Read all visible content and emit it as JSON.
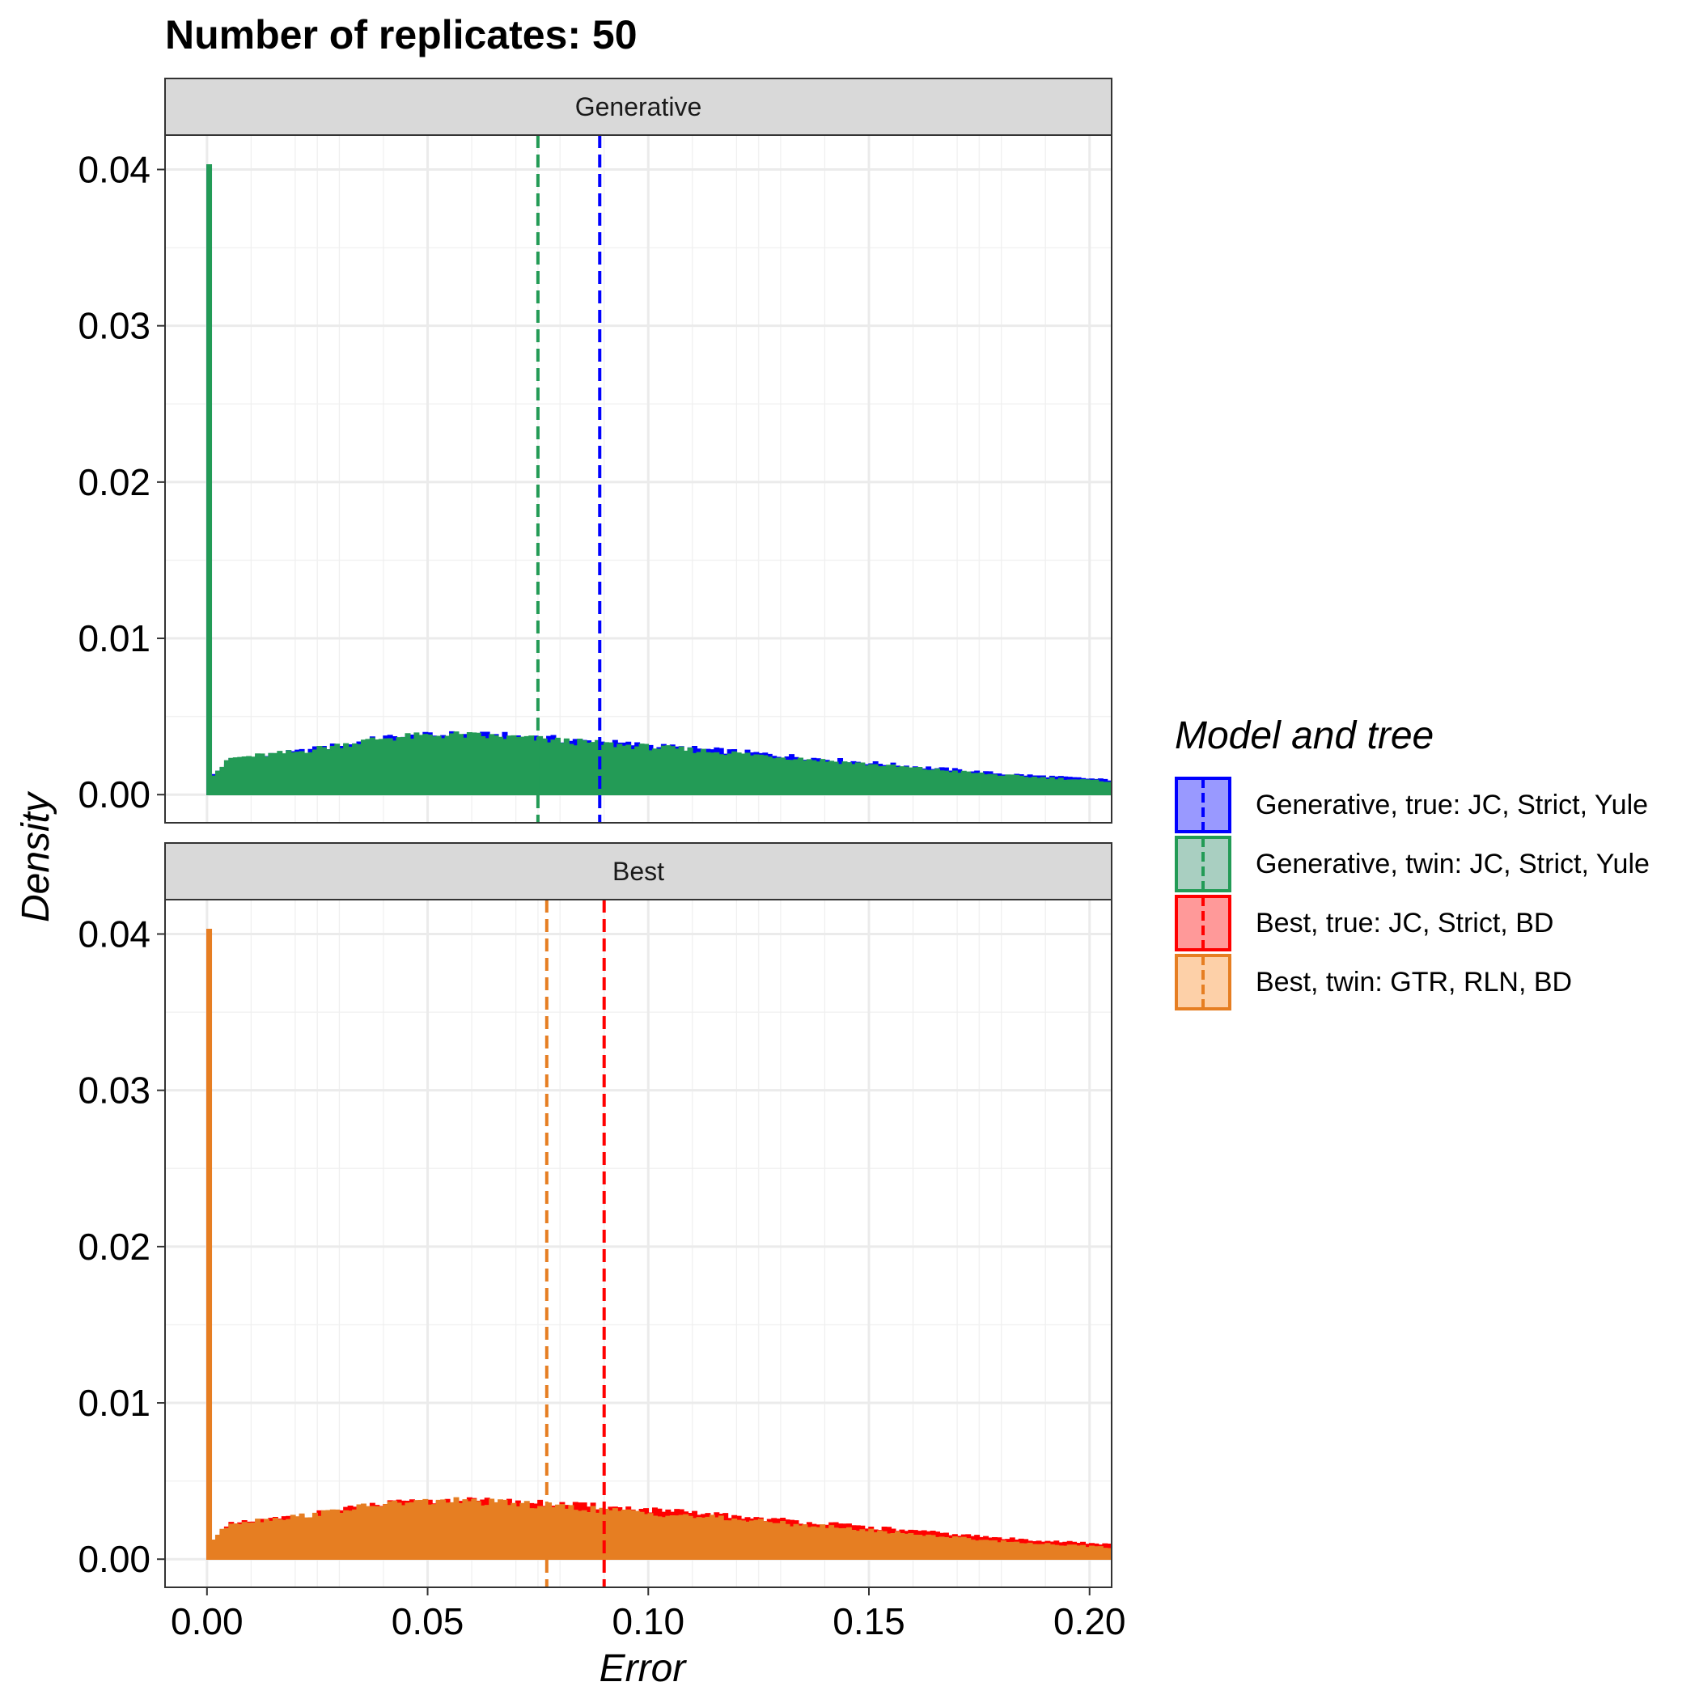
{
  "chart_data": {
    "type": "histogram",
    "title": "Number of replicates:  50",
    "xlabel": "Error",
    "ylabel": "Density",
    "xlim": [
      -0.0095,
      0.205
    ],
    "ylim": [
      -0.0018,
      0.0422
    ],
    "x_ticks": [
      {
        "value": 0.0,
        "label": "0.00"
      },
      {
        "value": 0.05,
        "label": "0.05"
      },
      {
        "value": 0.1,
        "label": "0.10"
      },
      {
        "value": 0.15,
        "label": "0.15"
      },
      {
        "value": 0.2,
        "label": "0.20"
      }
    ],
    "y_ticks": [
      {
        "value": 0.0,
        "label": "0.00"
      },
      {
        "value": 0.01,
        "label": "0.01"
      },
      {
        "value": 0.02,
        "label": "0.02"
      },
      {
        "value": 0.03,
        "label": "0.03"
      },
      {
        "value": 0.04,
        "label": "0.04"
      }
    ],
    "grid": true,
    "bin_width": 0.001,
    "legend": {
      "title": "Model and tree",
      "position": "right",
      "entries": [
        {
          "label": "Generative, true: JC, Strict, Yule",
          "color": "#0000ff",
          "fill": "#9999ff"
        },
        {
          "label": "Generative, twin: JC, Strict, Yule",
          "color": "#239b56",
          "fill": "#a9cfc1"
        },
        {
          "label": "Best, true: JC, Strict, BD",
          "color": "#ff0000",
          "fill": "#ff9999"
        },
        {
          "label": "Best, twin: GTR, RLN, BD",
          "color": "#e67e22",
          "fill": "#fdd0a8"
        }
      ]
    },
    "panels": [
      {
        "label": "Generative",
        "series": [
          {
            "name": "Generative, true: JC, Strict, Yule",
            "color": "#0000ff",
            "mean": 0.089,
            "spike": {
              "x": 0.0,
              "density": 0.0403
            },
            "density_profile": [
              [
                0.0,
                0.001
              ],
              [
                0.005,
                0.0022
              ],
              [
                0.02,
                0.0027
              ],
              [
                0.04,
                0.0036
              ],
              [
                0.055,
                0.0038
              ],
              [
                0.07,
                0.0037
              ],
              [
                0.09,
                0.0033
              ],
              [
                0.12,
                0.0027
              ],
              [
                0.15,
                0.002
              ],
              [
                0.18,
                0.0013
              ],
              [
                0.205,
                0.0009
              ]
            ]
          },
          {
            "name": "Generative, twin: JC, Strict, Yule",
            "color": "#239b56",
            "mean": 0.075,
            "spike": {
              "x": 0.0,
              "density": 0.0403
            },
            "density_profile": [
              [
                0.0,
                0.001
              ],
              [
                0.005,
                0.0023
              ],
              [
                0.02,
                0.0027
              ],
              [
                0.04,
                0.0036
              ],
              [
                0.055,
                0.0038
              ],
              [
                0.07,
                0.0036
              ],
              [
                0.09,
                0.0032
              ],
              [
                0.12,
                0.0026
              ],
              [
                0.15,
                0.0019
              ],
              [
                0.18,
                0.0012
              ],
              [
                0.205,
                0.0008
              ]
            ]
          }
        ]
      },
      {
        "label": "Best",
        "series": [
          {
            "name": "Best, true: JC, Strict, BD",
            "color": "#ff0000",
            "mean": 0.09,
            "spike": {
              "x": 0.0,
              "density": 0.0403
            },
            "density_profile": [
              [
                0.0,
                0.001
              ],
              [
                0.005,
                0.0022
              ],
              [
                0.02,
                0.0027
              ],
              [
                0.04,
                0.0035
              ],
              [
                0.055,
                0.0037
              ],
              [
                0.07,
                0.0036
              ],
              [
                0.09,
                0.0033
              ],
              [
                0.12,
                0.0027
              ],
              [
                0.15,
                0.002
              ],
              [
                0.18,
                0.0013
              ],
              [
                0.205,
                0.0009
              ]
            ]
          },
          {
            "name": "Best, twin: GTR, RLN, BD",
            "color": "#e67e22",
            "mean": 0.077,
            "spike": {
              "x": 0.0,
              "density": 0.0403
            },
            "density_profile": [
              [
                0.0,
                0.001
              ],
              [
                0.005,
                0.0023
              ],
              [
                0.02,
                0.0027
              ],
              [
                0.04,
                0.0035
              ],
              [
                0.055,
                0.0037
              ],
              [
                0.07,
                0.0035
              ],
              [
                0.09,
                0.0031
              ],
              [
                0.12,
                0.0025
              ],
              [
                0.15,
                0.0018
              ],
              [
                0.18,
                0.0011
              ],
              [
                0.205,
                0.0007
              ]
            ]
          }
        ]
      }
    ]
  }
}
